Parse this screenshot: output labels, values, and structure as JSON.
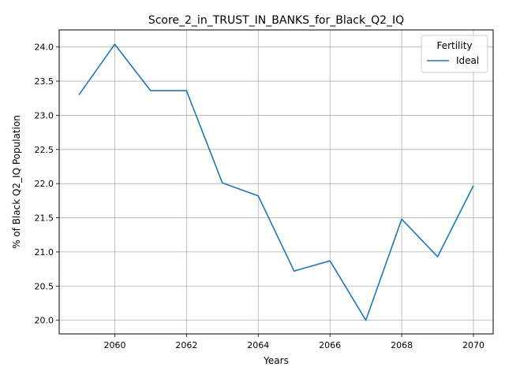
{
  "chart_data": {
    "type": "line",
    "title": "Score_2_in_TRUST_IN_BANKS_for_Black_Q2_IQ",
    "xlabel": "Years",
    "ylabel": "% of Black Q2_IQ Population",
    "xlim": [
      2058.45,
      2070.55
    ],
    "ylim": [
      19.8,
      24.25
    ],
    "xticks": [
      2060,
      2062,
      2064,
      2066,
      2068,
      2070
    ],
    "yticks": [
      20.0,
      20.5,
      21.0,
      21.5,
      22.0,
      22.5,
      23.0,
      23.5,
      24.0
    ],
    "xtick_labels": [
      "2060",
      "2062",
      "2064",
      "2066",
      "2068",
      "2070"
    ],
    "ytick_labels": [
      "20.0",
      "20.5",
      "21.0",
      "21.5",
      "22.0",
      "22.5",
      "23.0",
      "23.5",
      "24.0"
    ],
    "grid": true,
    "legend": {
      "title": "Fertility",
      "placement": "top-right"
    },
    "series": [
      {
        "name": "Ideal",
        "color": "#1f77b4",
        "x": [
          2059,
          2060,
          2061,
          2062,
          2063,
          2064,
          2065,
          2066,
          2067,
          2068,
          2069,
          2070
        ],
        "y": [
          23.3,
          24.04,
          23.36,
          23.36,
          22.01,
          21.82,
          20.72,
          20.87,
          20.0,
          21.48,
          20.93,
          21.97
        ]
      }
    ]
  }
}
